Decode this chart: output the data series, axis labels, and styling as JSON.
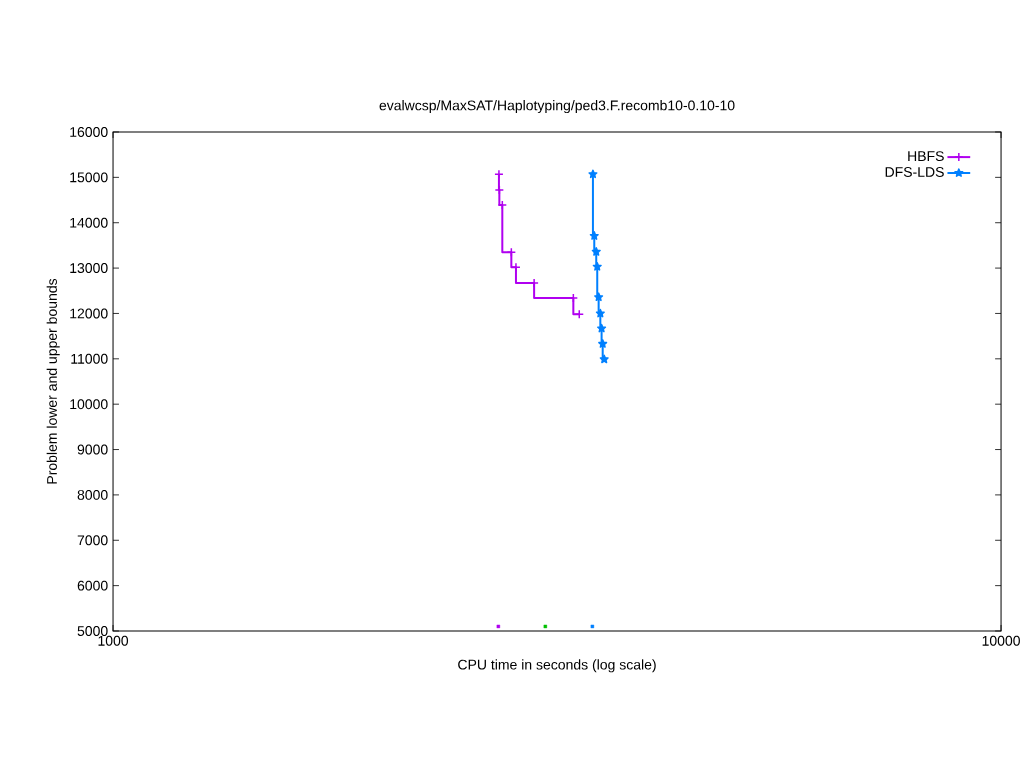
{
  "chart_data": {
    "type": "step",
    "title": "evalwcsp/MaxSAT/Haplotyping/ped3.F.recomb10-0.10-10",
    "xlabel": "CPU time in seconds (log scale)",
    "ylabel": "Problem lower and upper bounds",
    "log": "x",
    "xlim": [
      1000,
      10000
    ],
    "xticks": [
      1000,
      10000
    ],
    "ylim": [
      5000,
      16000
    ],
    "yticks": [
      5000,
      6000,
      7000,
      8000,
      9000,
      10000,
      11000,
      12000,
      13000,
      14000,
      15000,
      16000
    ],
    "legend": "top right",
    "grid": false,
    "series": [
      {
        "name": "HBFS",
        "color": "#b000f0",
        "marker": "cross",
        "x": [
          2720,
          2723,
          2744,
          2809,
          2843,
          2980,
          3299,
          3350
        ],
        "values": [
          15070,
          14720,
          14390,
          13350,
          13020,
          12670,
          12340,
          11980
        ]
      },
      {
        "name": "DFS-LDS",
        "color": "#0080ff",
        "marker": "star",
        "x": [
          3471,
          3483,
          3501,
          3510,
          3523,
          3538,
          3550,
          3560,
          3574
        ],
        "values": [
          15070,
          13710,
          13360,
          13030,
          12360,
          12000,
          11670,
          11330,
          10990
        ]
      },
      {
        "type": "scatter",
        "color": "#b000f0",
        "marker": "square",
        "x": [
          2716
        ],
        "values": [
          5100
        ]
      },
      {
        "type": "scatter",
        "color": "#00c000",
        "marker": "square",
        "x": [
          3068
        ],
        "values": [
          5100
        ]
      },
      {
        "type": "scatter",
        "color": "#0080ff",
        "marker": "square",
        "x": [
          3466
        ],
        "values": [
          5100
        ]
      }
    ]
  }
}
